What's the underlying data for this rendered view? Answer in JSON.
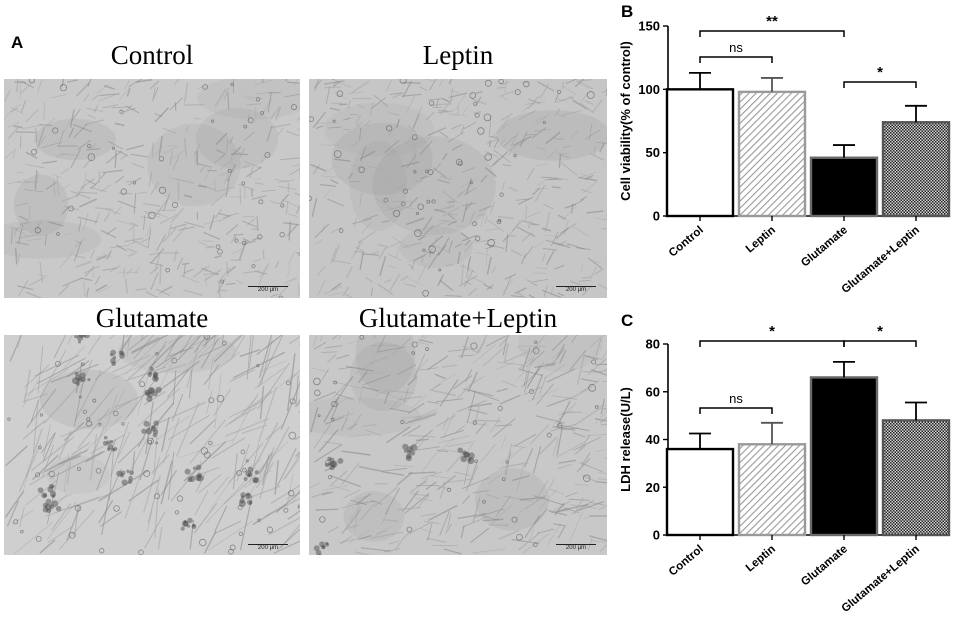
{
  "panel_a": {
    "letter": "A",
    "images": [
      {
        "title": "Control",
        "scale_label": "200 µm"
      },
      {
        "title": "Leptin",
        "scale_label": "200 µm"
      },
      {
        "title": "Glutamate",
        "scale_label": "200 µm"
      },
      {
        "title": "Glutamate+Leptin",
        "scale_label": "200 µm"
      }
    ]
  },
  "chart_data": [
    {
      "panel": "B",
      "type": "bar",
      "title": "",
      "xlabel": "",
      "ylabel": "Cell viability(% of control)",
      "categories": [
        "Control",
        "Leptin",
        "Glutamate",
        "Glutamate+Leptin"
      ],
      "values": [
        100,
        98,
        46,
        74
      ],
      "errors": [
        13,
        11,
        10,
        13
      ],
      "ylim": [
        0,
        150
      ],
      "yticks": [
        0,
        50,
        100,
        150
      ],
      "fills": [
        "white",
        "hatch",
        "black",
        "checker"
      ],
      "grid": false,
      "significance": [
        {
          "from": 0,
          "to": 1,
          "label": "ns"
        },
        {
          "from": 0,
          "to": 2,
          "label": "**"
        },
        {
          "from": 2,
          "to": 3,
          "label": "*"
        }
      ]
    },
    {
      "panel": "C",
      "type": "bar",
      "title": "",
      "xlabel": "",
      "ylabel": "LDH release(U/L)",
      "categories": [
        "Control",
        "Leptin",
        "Glutamate",
        "Glutamate+Leptin"
      ],
      "values": [
        36,
        38,
        66,
        48
      ],
      "errors": [
        6.5,
        9,
        6.5,
        7.5
      ],
      "ylim": [
        0,
        80
      ],
      "yticks": [
        0,
        20,
        40,
        60,
        80
      ],
      "fills": [
        "white",
        "hatch",
        "black",
        "checker"
      ],
      "grid": false,
      "significance": [
        {
          "from": 0,
          "to": 1,
          "label": "ns"
        },
        {
          "from": 0,
          "to": 2,
          "label": "*"
        },
        {
          "from": 2,
          "to": 3,
          "label": "*"
        }
      ]
    }
  ]
}
